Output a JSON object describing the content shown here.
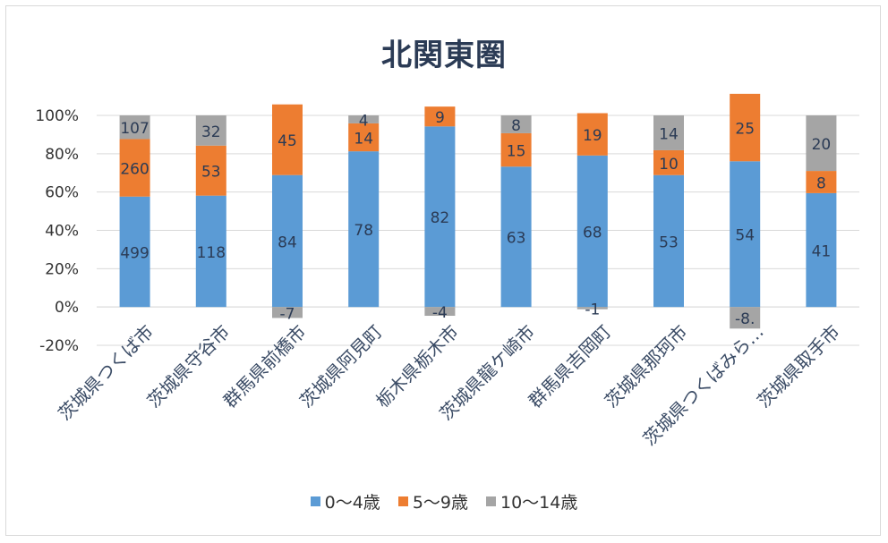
{
  "chart_data": {
    "type": "bar",
    "stacking": "percent",
    "title": "北関東圏",
    "categories": [
      "茨城県つくば市",
      "茨城県守谷市",
      "群馬県前橋市",
      "茨城県阿見町",
      "栃木県栃木市",
      "茨城県龍ケ崎市",
      "群馬県吉岡町",
      "茨城県那珂市",
      "茨城県つくばみら…",
      "茨城県取手市"
    ],
    "yticks": [
      "100%",
      "80%",
      "60%",
      "40%",
      "20%",
      "0%",
      "-20%"
    ],
    "ylim": [
      -20,
      100
    ],
    "grid": true,
    "legend_position": "bottom",
    "series": [
      {
        "name": "0～4歳",
        "color": "#5b9bd5",
        "values": [
          499,
          118,
          84,
          78,
          82,
          63,
          68,
          53,
          54,
          41
        ],
        "labels": [
          "499",
          "118",
          "84",
          "78",
          "82",
          "63",
          "68",
          "53",
          "54",
          "41"
        ]
      },
      {
        "name": "5～9歳",
        "color": "#ed7d31",
        "values": [
          260,
          53,
          45,
          14,
          9,
          15,
          19,
          10,
          25,
          8
        ],
        "labels": [
          "260",
          "53",
          "45",
          "14",
          "9",
          "15",
          "19",
          "10",
          "25",
          "8"
        ]
      },
      {
        "name": "10～14歳",
        "color": "#a5a5a5",
        "values": [
          107,
          32,
          -7,
          4,
          -4,
          8,
          -1,
          14,
          -8,
          20
        ],
        "labels": [
          "107",
          "32",
          "-7",
          "4",
          "-4",
          "8",
          "-1",
          "14",
          "-8.",
          "20"
        ]
      }
    ]
  }
}
